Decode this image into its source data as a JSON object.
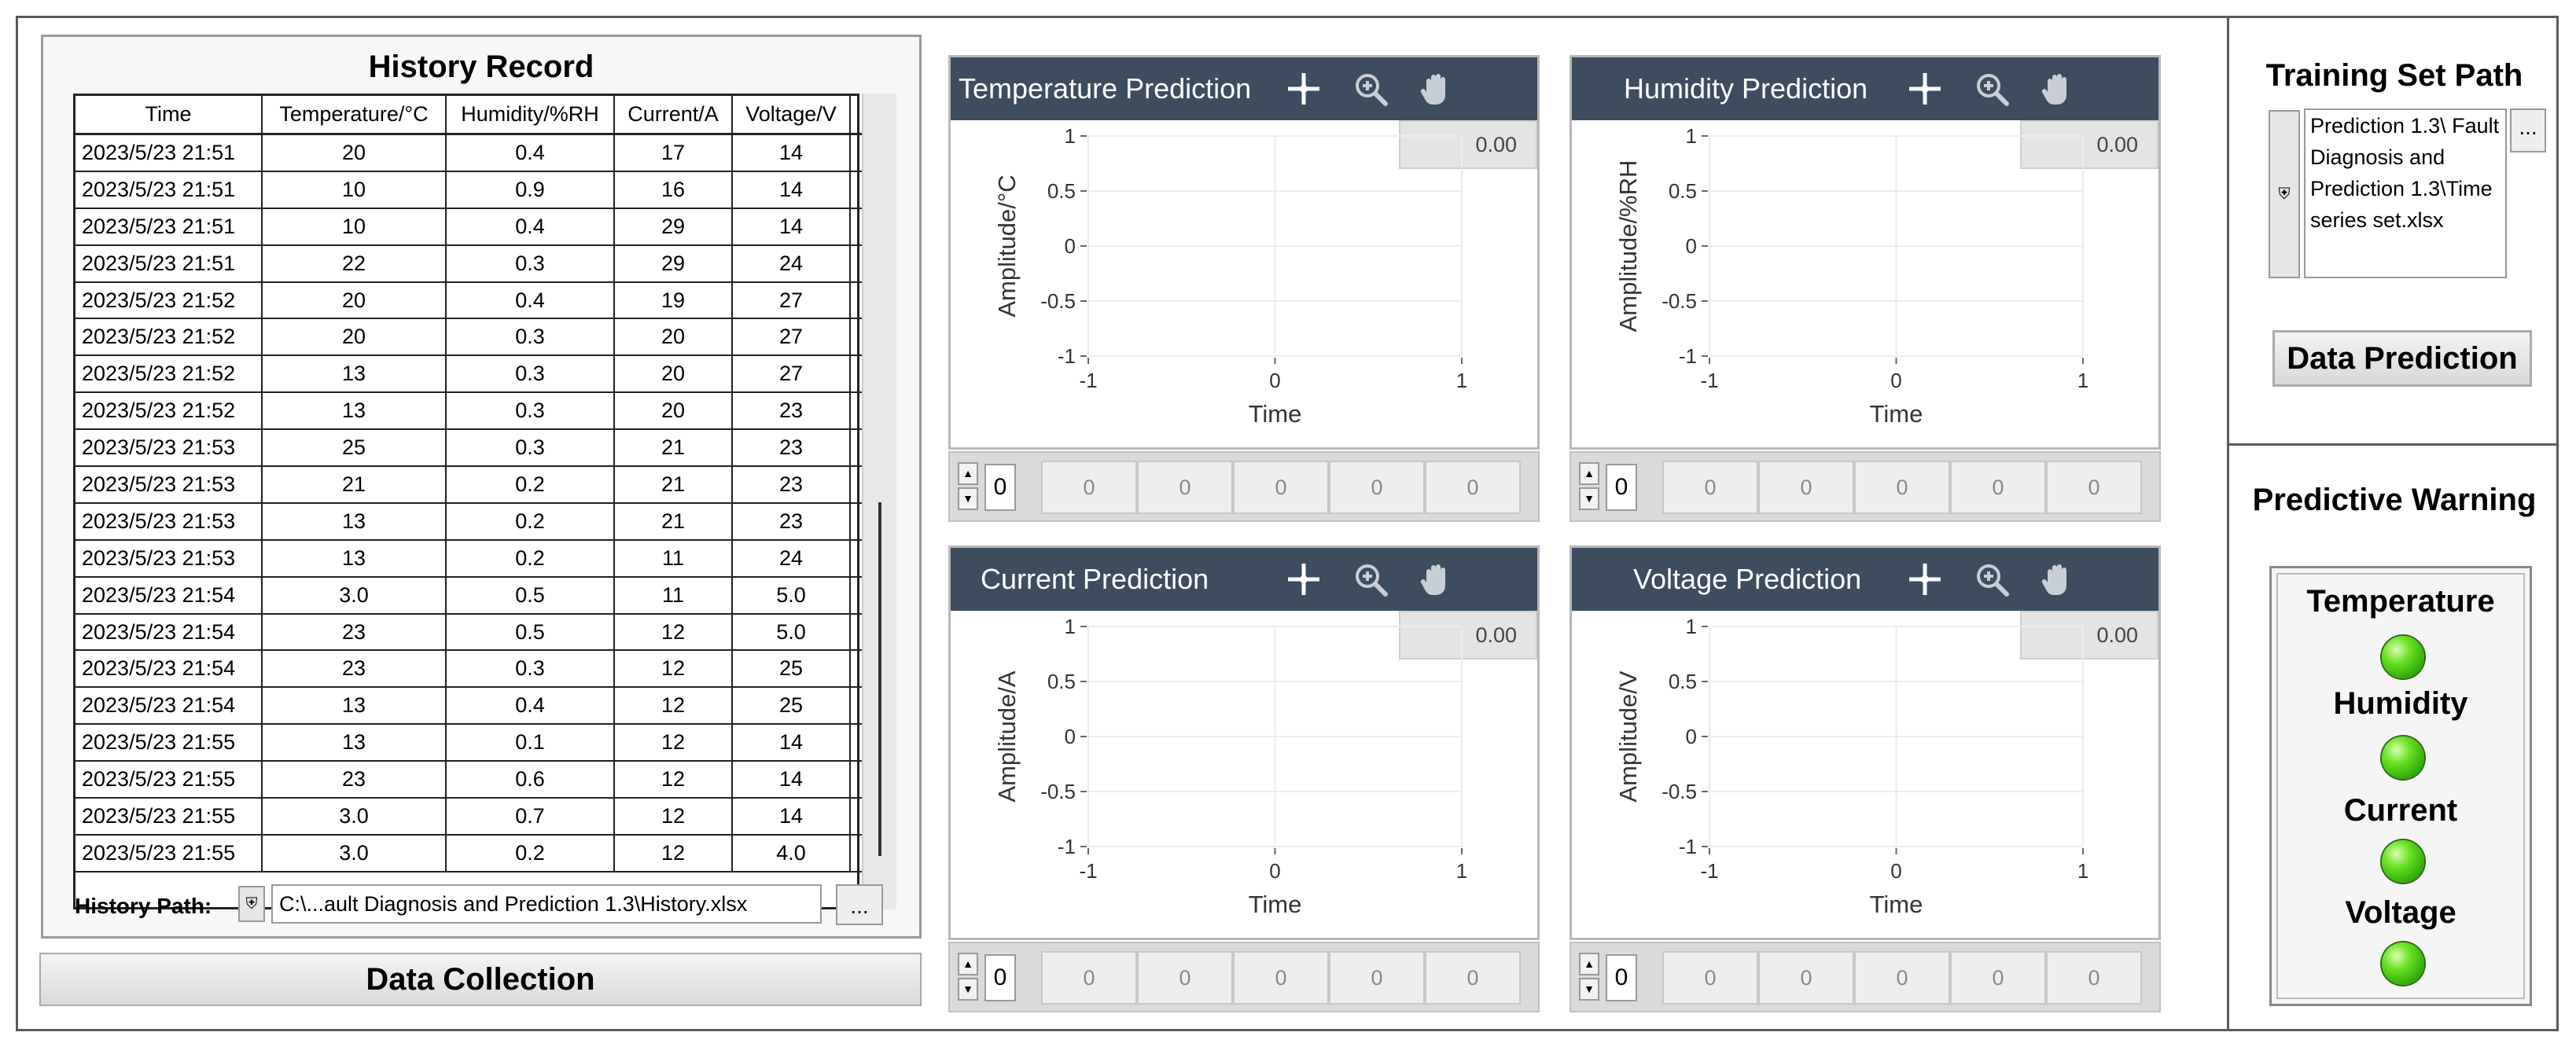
{
  "history": {
    "title": "History Record",
    "columns": [
      "Time",
      "Temperature/°C",
      "Humidity/%RH",
      "Current/A",
      "Voltage/V"
    ],
    "rows": [
      [
        "2023/5/23 21:51",
        "20",
        "0.4",
        "17",
        "14"
      ],
      [
        "2023/5/23 21:51",
        "10",
        "0.9",
        "16",
        "14"
      ],
      [
        "2023/5/23 21:51",
        "10",
        "0.4",
        "29",
        "14"
      ],
      [
        "2023/5/23 21:51",
        "22",
        "0.3",
        "29",
        "24"
      ],
      [
        "2023/5/23 21:52",
        "20",
        "0.4",
        "19",
        "27"
      ],
      [
        "2023/5/23 21:52",
        "20",
        "0.3",
        "20",
        "27"
      ],
      [
        "2023/5/23 21:52",
        "13",
        "0.3",
        "20",
        "27"
      ],
      [
        "2023/5/23 21:52",
        "13",
        "0.3",
        "20",
        "23"
      ],
      [
        "2023/5/23 21:53",
        "25",
        "0.3",
        "21",
        "23"
      ],
      [
        "2023/5/23 21:53",
        "21",
        "0.2",
        "21",
        "23"
      ],
      [
        "2023/5/23 21:53",
        "13",
        "0.2",
        "21",
        "23"
      ],
      [
        "2023/5/23 21:53",
        "13",
        "0.2",
        "11",
        "24"
      ],
      [
        "2023/5/23 21:54",
        "3.0",
        "0.5",
        "11",
        "5.0"
      ],
      [
        "2023/5/23 21:54",
        "23",
        "0.5",
        "12",
        "5.0"
      ],
      [
        "2023/5/23 21:54",
        "23",
        "0.3",
        "12",
        "25"
      ],
      [
        "2023/5/23 21:54",
        "13",
        "0.4",
        "12",
        "25"
      ],
      [
        "2023/5/23 21:55",
        "13",
        "0.1",
        "12",
        "14"
      ],
      [
        "2023/5/23 21:55",
        "23",
        "0.6",
        "12",
        "14"
      ],
      [
        "2023/5/23 21:55",
        "3.0",
        "0.7",
        "12",
        "14"
      ],
      [
        "2023/5/23 21:55",
        "3.0",
        "0.2",
        "12",
        "4.0"
      ]
    ],
    "path_label": "History Path:",
    "path_value": "C:\\...ault Diagnosis and Prediction 1.3\\History.xlsx",
    "browse_label": "...",
    "collect_button": "Data Collection"
  },
  "charts": [
    {
      "title": "Temperature Prediction",
      "ylabel": "Amplitude/°C",
      "xlabel": "Time",
      "readout": "0.00",
      "index": "0",
      "cells": [
        "0",
        "0",
        "0",
        "0",
        "0"
      ]
    },
    {
      "title": "Humidity Prediction",
      "ylabel": "Amplitude/%RH",
      "xlabel": "Time",
      "readout": "0.00",
      "index": "0",
      "cells": [
        "0",
        "0",
        "0",
        "0",
        "0"
      ]
    },
    {
      "title": "Current Prediction",
      "ylabel": "Amplitude/A",
      "xlabel": "Time",
      "readout": "0.00",
      "index": "0",
      "cells": [
        "0",
        "0",
        "0",
        "0",
        "0"
      ]
    },
    {
      "title": "Voltage Prediction",
      "ylabel": "Amplitude/V",
      "xlabel": "Time",
      "readout": "0.00",
      "index": "0",
      "cells": [
        "0",
        "0",
        "0",
        "0",
        "0"
      ]
    }
  ],
  "chart_data": {
    "type": "line",
    "xlim": [
      -1,
      1
    ],
    "ylim": [
      -1,
      1
    ],
    "x_ticks": [
      "-1",
      "0",
      "1"
    ],
    "y_ticks": [
      "1",
      "0.5",
      "0",
      "-0.5",
      "-1"
    ],
    "grid": true,
    "series": []
  },
  "training": {
    "title": "Training Set Path",
    "path_value": "Prediction 1.3\\ Fault Diagnosis and Prediction 1.3\\Time series set.xlsx",
    "browse_label": "...",
    "predict_button": "Data Prediction"
  },
  "warning": {
    "title": "Predictive Warning",
    "indicators": [
      {
        "label": "Temperature",
        "color": "#3cc314"
      },
      {
        "label": "Humidity",
        "color": "#3cc314"
      },
      {
        "label": "Current",
        "color": "#3cc314"
      },
      {
        "label": "Voltage",
        "color": "#3cc314"
      }
    ]
  }
}
